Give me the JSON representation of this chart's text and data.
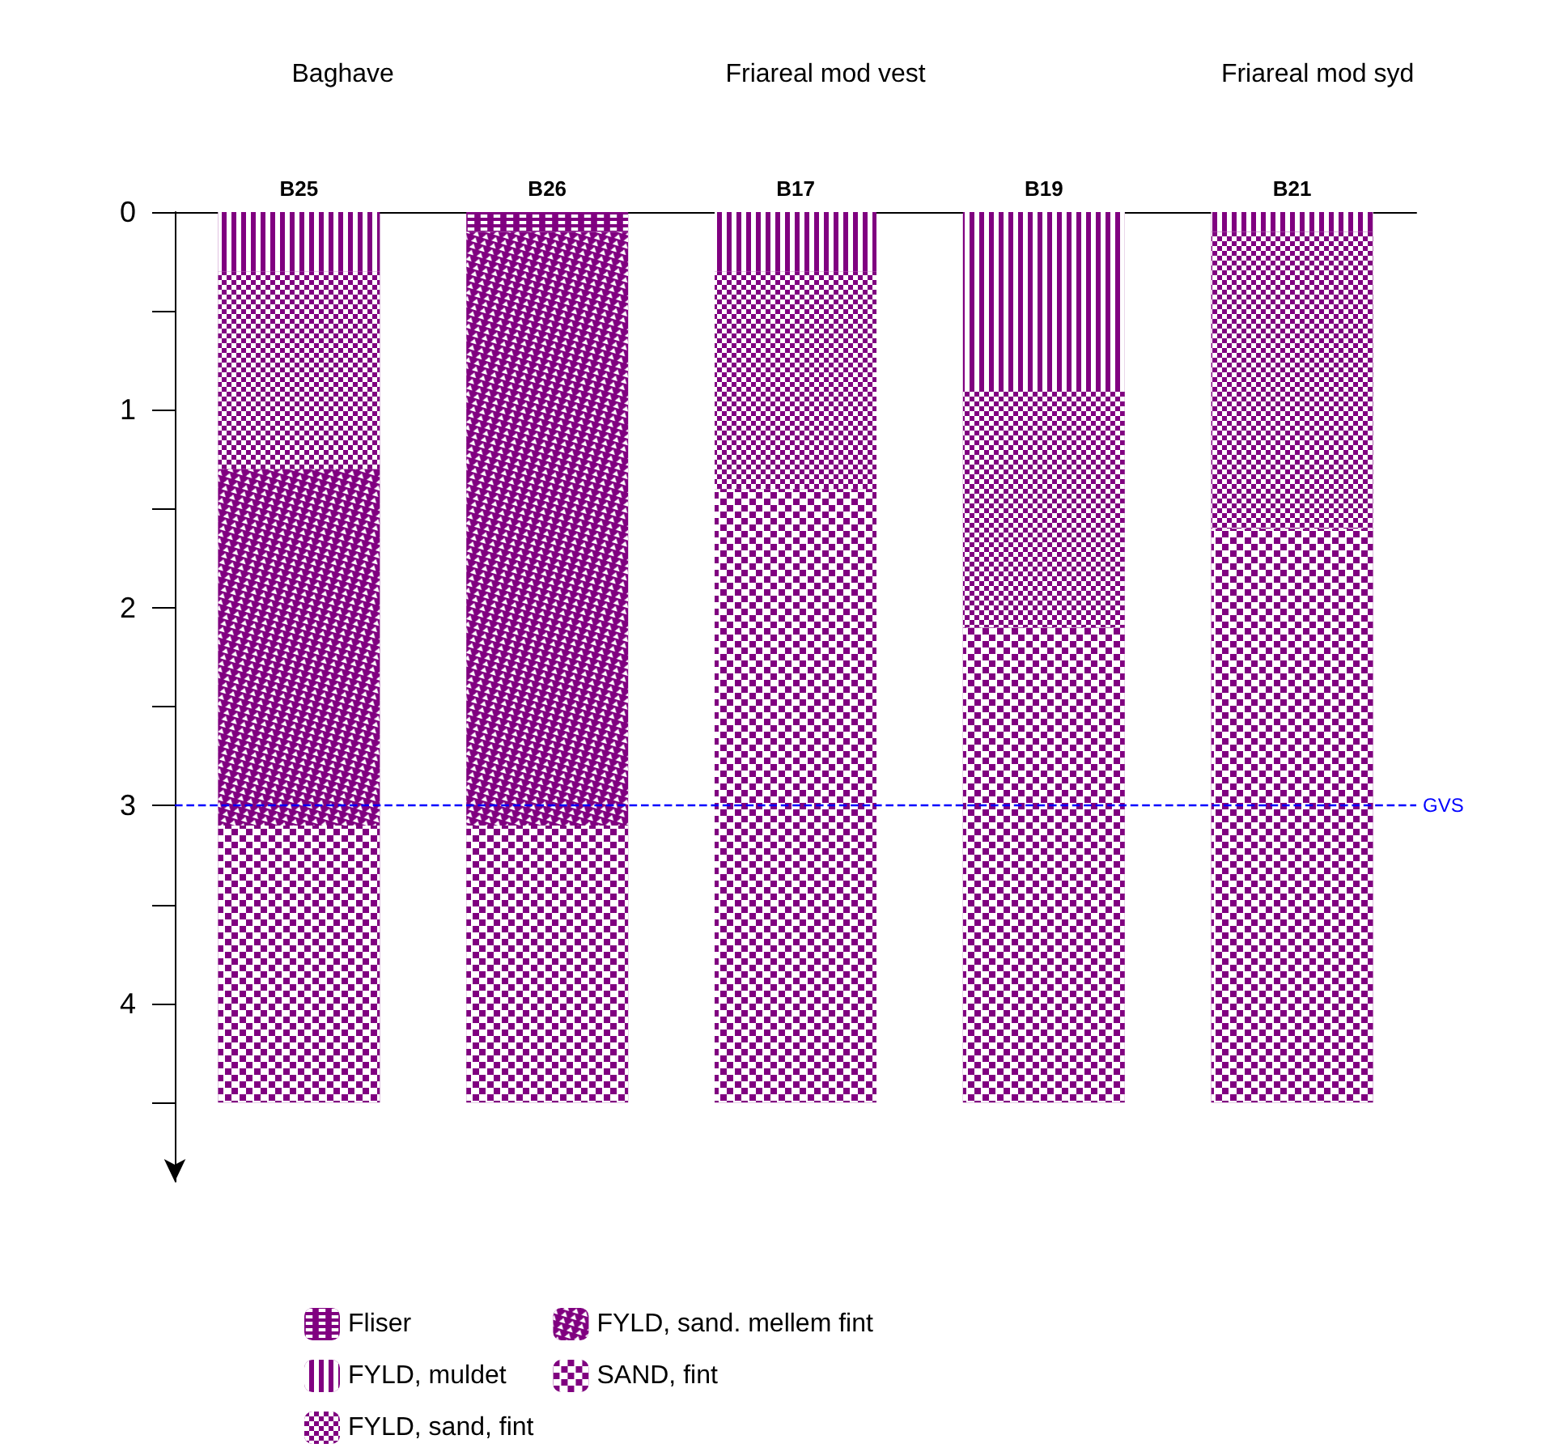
{
  "chart_data": {
    "type": "bar",
    "stacked": true,
    "categories": [
      "B25",
      "B26",
      "B17",
      "B19",
      "B21"
    ],
    "series": [
      {
        "name": "Fliser",
        "color": "#800080",
        "values": [
          null,
          0.1,
          null,
          null,
          null
        ]
      },
      {
        "name": "FYLD, muldet",
        "color": "#800080",
        "values": [
          0.3,
          null,
          0.3,
          0.9,
          0.1
        ]
      },
      {
        "name": "FYLD, sand, fint",
        "color": "#800080",
        "values": [
          1.0,
          null,
          1.1,
          1.2,
          1.5
        ]
      },
      {
        "name": "FYLD, sand. mellem fint",
        "color": "#800080",
        "values": [
          1.8,
          3.0,
          null,
          null,
          null
        ]
      },
      {
        "name": "SAND, fint",
        "color": "#800080",
        "values": [
          1.4,
          1.4,
          3.1,
          2.4,
          2.9
        ]
      }
    ],
    "ylim": [
      4.9,
      0
    ],
    "yticks": [
      0,
      {
        "value": 0.5,
        "label": null
      },
      1,
      {
        "value": 1.5,
        "label": null
      },
      2,
      {
        "value": 2.5,
        "label": null
      },
      3,
      {
        "value": 3.5,
        "label": null
      },
      4,
      {
        "value": 4.5,
        "label": null
      }
    ],
    "ref_lines": [
      {
        "axis": "y",
        "value": 3,
        "label": "GVS",
        "color": "#0000ff",
        "line_style": "dashed"
      }
    ],
    "annotations": [
      "Baghave",
      "Friareal mod vest",
      "Friareal mod syd"
    ],
    "grid": false,
    "legend": "bottom"
  }
}
